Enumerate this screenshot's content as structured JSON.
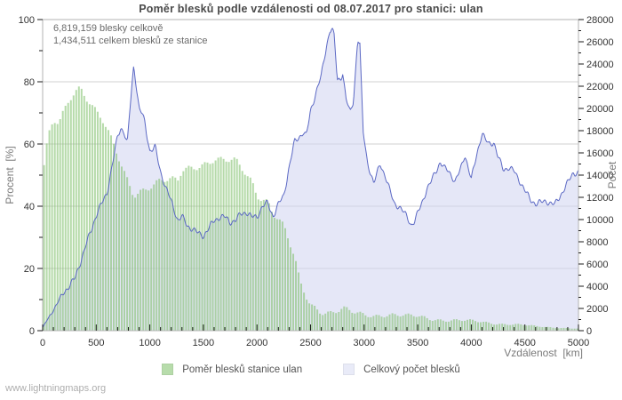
{
  "page": {
    "footer": "www.lightningmaps.org"
  },
  "chart_data": {
    "type": "area",
    "title": "Poměr blesků podle vzdálenosti od 08.07.2017 pro stanici: ulan",
    "annotations": [
      "6,819,159 blesky celkově",
      "1,434,511 celkem blesků ze stanice"
    ],
    "grid": "horizontal-major",
    "legend_position": "bottom-center",
    "x_axis": {
      "label": "Vzdálenost  [km]",
      "min": 0,
      "max": 5000,
      "major_tick": 500,
      "minor_tick": 100,
      "tick_labels": [
        "0",
        "500",
        "1000",
        "1500",
        "2000",
        "2500",
        "3000",
        "3500",
        "4000",
        "4500",
        "5000"
      ]
    },
    "y_left": {
      "label": "Procent  [%]",
      "min": 0,
      "max": 100,
      "major_tick": 20,
      "minor_tick": 10,
      "tick_labels": [
        "0",
        "20",
        "40",
        "60",
        "80",
        "100"
      ]
    },
    "y_right": {
      "label": "Počet",
      "min": 0,
      "max": 28000,
      "major_tick": 2000,
      "minor_tick": 1000,
      "tick_labels": [
        "0",
        "2000",
        "4000",
        "6000",
        "8000",
        "10000",
        "12000",
        "14000",
        "16000",
        "18000",
        "20000",
        "22000",
        "24000",
        "26000",
        "28000"
      ]
    },
    "legend": [
      {
        "label": "Poměr blesků stanice ulan",
        "color": "#b7dcab",
        "type": "bars",
        "axis": "left"
      },
      {
        "label": "Celkový počet blesků",
        "color": "#e9ebf8",
        "type": "area-line",
        "axis": "right",
        "line_color": "#5b68c4"
      }
    ],
    "series": [
      {
        "name": "Poměr blesků stanice ulan",
        "axis": "left",
        "unit": "%",
        "points": [
          [
            0,
            50
          ],
          [
            30,
            58
          ],
          [
            60,
            63
          ],
          [
            100,
            67
          ],
          [
            150,
            66
          ],
          [
            200,
            70
          ],
          [
            250,
            74
          ],
          [
            300,
            77
          ],
          [
            350,
            78.5
          ],
          [
            400,
            76
          ],
          [
            450,
            73.5
          ],
          [
            500,
            71
          ],
          [
            550,
            68.5
          ],
          [
            600,
            64.5
          ],
          [
            650,
            60
          ],
          [
            700,
            55.5
          ],
          [
            750,
            51
          ],
          [
            800,
            47
          ],
          [
            850,
            43.5
          ],
          [
            900,
            45
          ],
          [
            950,
            46
          ],
          [
            1000,
            47
          ],
          [
            1100,
            48.5
          ],
          [
            1200,
            48
          ],
          [
            1260,
            47.5
          ],
          [
            1300,
            51
          ],
          [
            1400,
            52.5
          ],
          [
            1500,
            54
          ],
          [
            1600,
            55.5
          ],
          [
            1650,
            55
          ],
          [
            1700,
            54.5
          ],
          [
            1800,
            54
          ],
          [
            1900,
            50
          ],
          [
            1950,
            48
          ],
          [
            2000,
            44
          ],
          [
            2050,
            43
          ],
          [
            2100,
            42
          ],
          [
            2150,
            38
          ],
          [
            2200,
            36
          ],
          [
            2250,
            33
          ],
          [
            2300,
            28
          ],
          [
            2350,
            23
          ],
          [
            2400,
            15
          ],
          [
            2450,
            11.5
          ],
          [
            2500,
            8.5
          ],
          [
            2600,
            6.5
          ],
          [
            2700,
            6
          ],
          [
            2800,
            6.8
          ],
          [
            2900,
            5.5
          ],
          [
            3000,
            5
          ],
          [
            3100,
            5
          ],
          [
            3200,
            5.5
          ],
          [
            3300,
            5
          ],
          [
            3400,
            4.5
          ],
          [
            3500,
            4.5
          ],
          [
            3600,
            4
          ],
          [
            3700,
            3.7
          ],
          [
            3800,
            3.4
          ],
          [
            3900,
            3.2
          ],
          [
            4000,
            3
          ],
          [
            4100,
            2.8
          ],
          [
            4200,
            2.5
          ],
          [
            4300,
            2.2
          ],
          [
            4400,
            2
          ],
          [
            4500,
            1.7
          ],
          [
            4600,
            1.4
          ],
          [
            4700,
            1.2
          ],
          [
            4800,
            1
          ],
          [
            4900,
            0.8
          ],
          [
            5000,
            0.6
          ]
        ]
      },
      {
        "name": "Celkový počet blesků",
        "axis": "right",
        "unit": "count",
        "points": [
          [
            0,
            300
          ],
          [
            100,
            1800
          ],
          [
            200,
            3500
          ],
          [
            300,
            4800
          ],
          [
            400,
            7500
          ],
          [
            500,
            10300
          ],
          [
            600,
            12500
          ],
          [
            650,
            15000
          ],
          [
            700,
            17600
          ],
          [
            730,
            18300
          ],
          [
            760,
            17800
          ],
          [
            790,
            16700
          ],
          [
            820,
            20500
          ],
          [
            850,
            23800
          ],
          [
            870,
            22300
          ],
          [
            900,
            19900
          ],
          [
            930,
            19500
          ],
          [
            950,
            18900
          ],
          [
            1000,
            16300
          ],
          [
            1050,
            16600
          ],
          [
            1100,
            14300
          ],
          [
            1150,
            12800
          ],
          [
            1200,
            11500
          ],
          [
            1260,
            9900
          ],
          [
            1300,
            10300
          ],
          [
            1350,
            9500
          ],
          [
            1400,
            9300
          ],
          [
            1450,
            8800
          ],
          [
            1500,
            8500
          ],
          [
            1550,
            9100
          ],
          [
            1600,
            9800
          ],
          [
            1650,
            10200
          ],
          [
            1700,
            10300
          ],
          [
            1750,
            9900
          ],
          [
            1800,
            10000
          ],
          [
            1850,
            10500
          ],
          [
            1900,
            10600
          ],
          [
            1950,
            10100
          ],
          [
            2000,
            10200
          ],
          [
            2050,
            11200
          ],
          [
            2100,
            11600
          ],
          [
            2150,
            10400
          ],
          [
            2200,
            11400
          ],
          [
            2250,
            12100
          ],
          [
            2300,
            14600
          ],
          [
            2350,
            16900
          ],
          [
            2400,
            17500
          ],
          [
            2430,
            17900
          ],
          [
            2460,
            17600
          ],
          [
            2500,
            19900
          ],
          [
            2550,
            21500
          ],
          [
            2600,
            22900
          ],
          [
            2650,
            25600
          ],
          [
            2680,
            26900
          ],
          [
            2700,
            27100
          ],
          [
            2720,
            26400
          ],
          [
            2750,
            22500
          ],
          [
            2780,
            22700
          ],
          [
            2800,
            23300
          ],
          [
            2830,
            21000
          ],
          [
            2870,
            19700
          ],
          [
            2900,
            20800
          ],
          [
            2940,
            26300
          ],
          [
            2960,
            25800
          ],
          [
            2990,
            17900
          ],
          [
            3030,
            15100
          ],
          [
            3090,
            13100
          ],
          [
            3150,
            15100
          ],
          [
            3200,
            13900
          ],
          [
            3230,
            13000
          ],
          [
            3280,
            11600
          ],
          [
            3320,
            11200
          ],
          [
            3350,
            10800
          ],
          [
            3400,
            10200
          ],
          [
            3440,
            9400
          ],
          [
            3470,
            9700
          ],
          [
            3520,
            11100
          ],
          [
            3580,
            12700
          ],
          [
            3620,
            13400
          ],
          [
            3660,
            14300
          ],
          [
            3710,
            15100
          ],
          [
            3750,
            14500
          ],
          [
            3790,
            14300
          ],
          [
            3850,
            13300
          ],
          [
            3900,
            14600
          ],
          [
            3940,
            16000
          ],
          [
            3970,
            14800
          ],
          [
            4000,
            13700
          ],
          [
            4050,
            15900
          ],
          [
            4100,
            17700
          ],
          [
            4130,
            17100
          ],
          [
            4160,
            16700
          ],
          [
            4210,
            16900
          ],
          [
            4250,
            15600
          ],
          [
            4300,
            14600
          ],
          [
            4350,
            14800
          ],
          [
            4400,
            14400
          ],
          [
            4450,
            13500
          ],
          [
            4500,
            12500
          ],
          [
            4550,
            11700
          ],
          [
            4600,
            11400
          ],
          [
            4650,
            11600
          ],
          [
            4700,
            11800
          ],
          [
            4750,
            11500
          ],
          [
            4780,
            11400
          ],
          [
            4850,
            12400
          ],
          [
            4900,
            13200
          ],
          [
            4950,
            14100
          ],
          [
            5000,
            14300
          ]
        ]
      }
    ]
  }
}
